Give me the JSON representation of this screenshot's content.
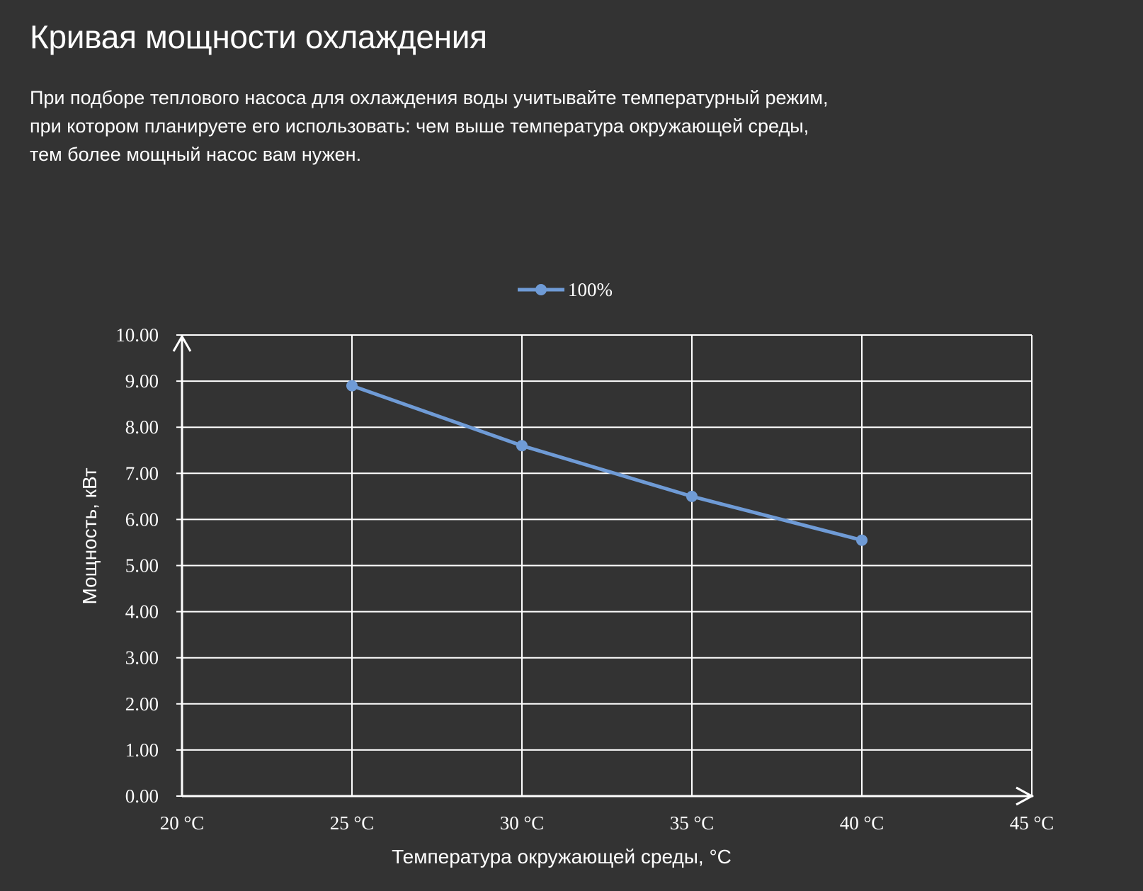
{
  "page": {
    "title": "Кривая мощности охлаждения",
    "description_lines": [
      "При подборе теплового насоса для охлаждения воды учитывайте температурный режим,",
      "при котором планируете его использовать: чем выше температура окружающей среды,",
      "тем более мощный насос вам нужен."
    ]
  },
  "chart_data": {
    "type": "line",
    "title": "",
    "xlabel": "Температура окружающей среды, °C",
    "ylabel": "Мощность, кВт",
    "x": [
      20,
      25,
      30,
      35,
      40,
      45
    ],
    "x_tick_labels": [
      "20 °C",
      "25 °C",
      "30 °C",
      "35 °C",
      "40 °C",
      "45 °C"
    ],
    "y_tick_labels": [
      "0.00",
      "1.00",
      "2.00",
      "3.00",
      "4.00",
      "5.00",
      "6.00",
      "7.00",
      "8.00",
      "9.00",
      "10.00"
    ],
    "xlim": [
      20,
      45
    ],
    "ylim": [
      0,
      10
    ],
    "grid": true,
    "legend_position": "top-center",
    "series": [
      {
        "name": "100%",
        "x": [
          25,
          30,
          35,
          40
        ],
        "values": [
          8.9,
          7.6,
          6.5,
          5.55
        ],
        "color": "#6f9bd6"
      }
    ]
  },
  "colors": {
    "background": "#333333",
    "grid": "#ffffff",
    "text": "#ffffff",
    "series": "#6f9bd6"
  }
}
